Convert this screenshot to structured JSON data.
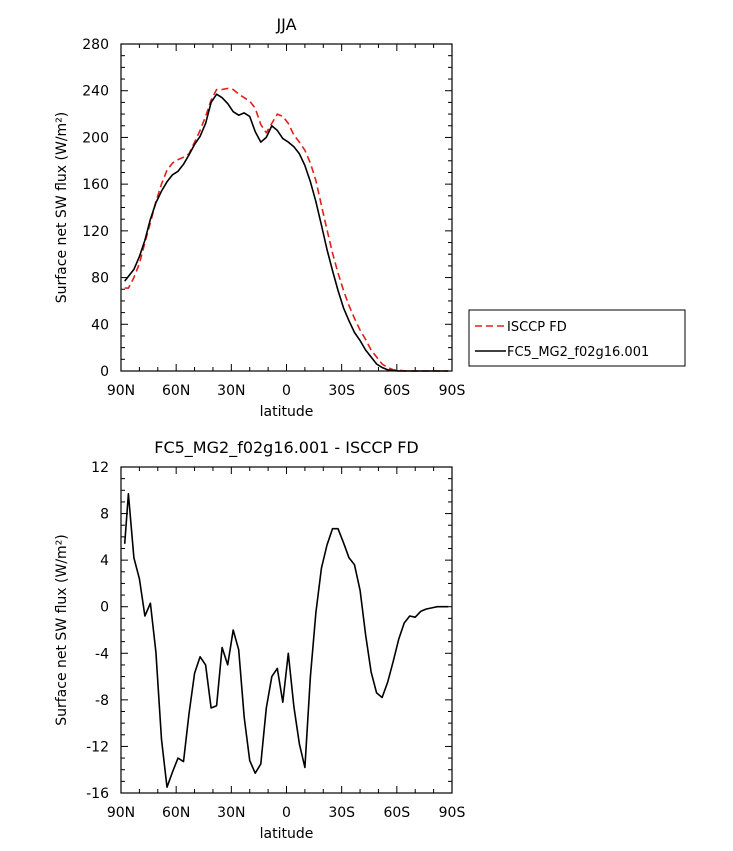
{
  "chart_data": [
    {
      "type": "line",
      "title": "JJA",
      "xlabel": "latitude",
      "ylabel": "Surface net SW flux (W/m²)",
      "xlim": [
        90,
        -90
      ],
      "ylim": [
        0,
        280
      ],
      "x_ticks": [
        "90N",
        "60N",
        "30N",
        "0",
        "30S",
        "60S",
        "90S"
      ],
      "y_ticks": [
        "0",
        "40",
        "80",
        "120",
        "160",
        "200",
        "240",
        "280"
      ],
      "legend": "right",
      "series": [
        {
          "name": "ISCCP FD",
          "color": "#e0201b",
          "dash": "dashed",
          "x": [
            88,
            86,
            83,
            80,
            77,
            74,
            71,
            68,
            65,
            62,
            59,
            56,
            53,
            50,
            47,
            44,
            41,
            38,
            35,
            32,
            29,
            26,
            23,
            20,
            17,
            14,
            11,
            8,
            5,
            2,
            -1,
            -4,
            -7,
            -10,
            -13,
            -16,
            -19,
            -22,
            -25,
            -28,
            -31,
            -34,
            -37,
            -40,
            -43,
            -46,
            -49,
            -52,
            -55,
            -58,
            -61,
            -64,
            -67,
            -70,
            -73,
            -76,
            -79,
            -82,
            -85,
            -88
          ],
          "y": [
            71,
            71,
            80,
            92,
            110,
            127,
            145,
            160,
            172,
            178,
            181,
            183,
            186,
            196,
            206,
            218,
            232,
            241,
            241,
            242,
            241,
            237,
            234,
            231,
            225,
            211,
            204,
            212,
            220,
            218,
            212,
            202,
            196,
            189,
            178,
            163,
            142,
            121,
            101,
            84,
            69,
            56,
            45,
            35,
            27,
            18,
            12,
            6,
            3,
            1,
            0.5,
            0.2,
            0,
            0,
            0,
            0,
            0,
            0,
            0,
            0
          ]
        },
        {
          "name": "FC5_MG2_f02g16.001",
          "color": "#000000",
          "dash": "solid",
          "x": [
            88,
            86,
            83,
            80,
            77,
            74,
            71,
            68,
            65,
            62,
            59,
            56,
            53,
            50,
            47,
            44,
            41,
            38,
            35,
            32,
            29,
            26,
            23,
            20,
            17,
            14,
            11,
            8,
            5,
            2,
            -1,
            -4,
            -7,
            -10,
            -13,
            -16,
            -19,
            -22,
            -25,
            -28,
            -31,
            -34,
            -37,
            -40,
            -43,
            -46,
            -49,
            -52,
            -55,
            -58,
            -61,
            -64,
            -67,
            -70,
            -73,
            -76,
            -79,
            -82,
            -85,
            -88
          ],
          "y": [
            77,
            81,
            87,
            98,
            112,
            130,
            144,
            154,
            162,
            168,
            171,
            177,
            185,
            194,
            201,
            212,
            230,
            237,
            234,
            229,
            222,
            219,
            221,
            218,
            205,
            196,
            200,
            210,
            206,
            199,
            196,
            192,
            186,
            176,
            162,
            145,
            125,
            104,
            86,
            69,
            54,
            43,
            33,
            26,
            18,
            12,
            6,
            3,
            1,
            0.3,
            0.1,
            0,
            0,
            0,
            0,
            0,
            0,
            0,
            0,
            0
          ]
        }
      ]
    },
    {
      "type": "line",
      "title": "FC5_MG2_f02g16.001 - ISCCP FD",
      "xlabel": "latitude",
      "ylabel": "Surface net SW flux (W/m²)",
      "xlim": [
        90,
        -90
      ],
      "ylim": [
        -16,
        12
      ],
      "x_ticks": [
        "90N",
        "60N",
        "30N",
        "0",
        "30S",
        "60S",
        "90S"
      ],
      "y_ticks": [
        "-16",
        "-12",
        "-8",
        "-4",
        "0",
        "4",
        "8",
        "12"
      ],
      "series": [
        {
          "color": "#000000",
          "dash": "solid",
          "x": [
            88,
            86,
            83,
            80,
            77,
            74,
            71,
            68,
            65,
            62,
            59,
            56,
            53,
            50,
            47,
            44,
            41,
            38,
            35,
            32,
            29,
            26,
            23,
            20,
            17,
            14,
            11,
            8,
            5,
            2,
            -1,
            -4,
            -7,
            -10,
            -13,
            -16,
            -19,
            -22,
            -25,
            -28,
            -31,
            -34,
            -37,
            -40,
            -43,
            -46,
            -49,
            -52,
            -55,
            -58,
            -61,
            -64,
            -67,
            -70,
            -73,
            -76,
            -79,
            -82,
            -85,
            -88
          ],
          "y": [
            5.4,
            9.7,
            4.2,
            2.4,
            -0.8,
            0.3,
            -3.9,
            -11.4,
            -15.5,
            -14.2,
            -13.0,
            -13.3,
            -9.2,
            -5.7,
            -4.3,
            -5.0,
            -8.7,
            -8.5,
            -3.5,
            -5.0,
            -2.0,
            -3.7,
            -9.5,
            -13.2,
            -14.3,
            -13.5,
            -8.7,
            -6.0,
            -5.3,
            -8.2,
            -4.0,
            -8.6,
            -11.8,
            -13.8,
            -6.0,
            -0.5,
            3.3,
            5.3,
            6.7,
            6.7,
            5.5,
            4.2,
            3.6,
            1.4,
            -2.4,
            -5.6,
            -7.4,
            -7.8,
            -6.5,
            -4.7,
            -2.8,
            -1.4,
            -0.8,
            -0.9,
            -0.4,
            -0.2,
            -0.1,
            0,
            0,
            0
          ]
        }
      ]
    }
  ]
}
